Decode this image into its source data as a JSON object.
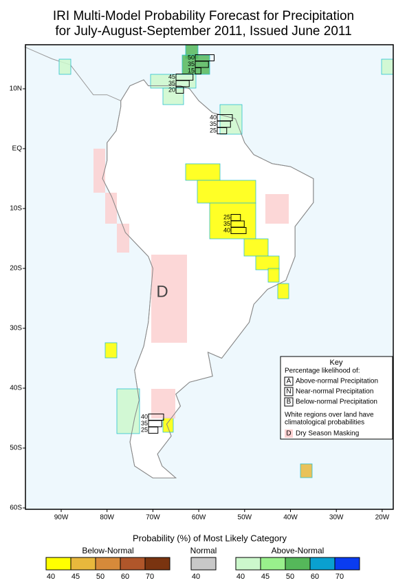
{
  "title": [
    "IRI Multi-Model Probability Forecast for Precipitation",
    "for July-August-September 2011, Issued June 2011"
  ],
  "map": {
    "lat_labels": [
      "10N",
      "EQ",
      "10S",
      "20S",
      "30S",
      "40S",
      "50S",
      "60S"
    ],
    "lon_labels": [
      "90W",
      "80W",
      "70W",
      "60W",
      "50W",
      "40W",
      "30W",
      "20W"
    ],
    "dry_mask_label": "D",
    "forecast_boxes": [
      {
        "values": [
          50,
          35,
          15
        ]
      },
      {
        "values": [
          45,
          35,
          20
        ]
      },
      {
        "values": [
          40,
          35,
          25
        ]
      },
      {
        "values": [
          25,
          35,
          40
        ]
      },
      {
        "values": [
          40,
          35,
          25
        ]
      }
    ]
  },
  "key": {
    "title": "Key",
    "subtitle": "Percentage likelihood of:",
    "items": [
      {
        "letter": "A",
        "label": "Above-normal Precipitation"
      },
      {
        "letter": "N",
        "label": "Near-normal Precipitation"
      },
      {
        "letter": "B",
        "label": "Below-normal Precipitation"
      }
    ],
    "note": [
      "White regions over land have",
      "climatological probabilities"
    ],
    "dry": {
      "letter": "D",
      "label": "Dry Season Masking"
    }
  },
  "colorbar": {
    "title": "Probability (%) of Most Likely Category",
    "groups": [
      {
        "name": "Below-Normal",
        "colors": [
          "#ffff00",
          "#e8b83c",
          "#d68a3a",
          "#b0562a",
          "#7a3410"
        ],
        "ticks": [
          40,
          45,
          50,
          60,
          70
        ]
      },
      {
        "name": "Normal",
        "colors": [
          "#c8c8c8"
        ],
        "ticks": [
          40
        ]
      },
      {
        "name": "Above-Normal",
        "colors": [
          "#ccf8cc",
          "#99f08c",
          "#55b85a",
          "#0aa0d0",
          "#0a3cf0"
        ],
        "ticks": [
          40,
          45,
          50,
          60,
          70
        ]
      }
    ]
  }
}
